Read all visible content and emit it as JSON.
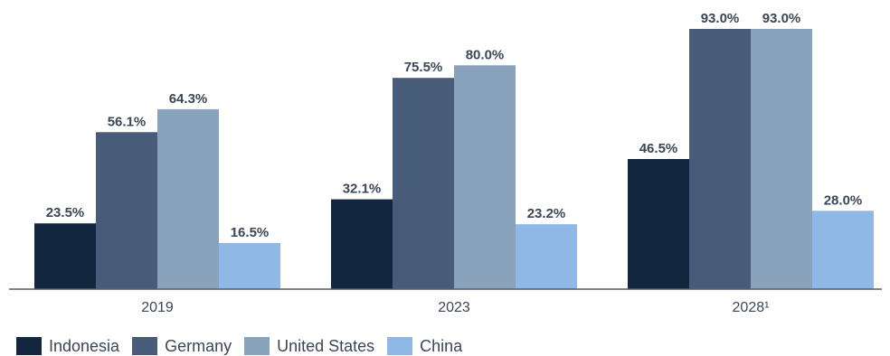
{
  "chart_data": {
    "type": "bar",
    "categories": [
      "2019",
      "2023",
      "2028¹"
    ],
    "series": [
      {
        "name": "Indonesia",
        "color": "#13263f",
        "values": [
          23.5,
          32.1,
          46.5
        ]
      },
      {
        "name": "Germany",
        "color": "#475c78",
        "values": [
          56.1,
          75.5,
          93.0
        ]
      },
      {
        "name": "United States",
        "color": "#8aa3bd",
        "values": [
          64.3,
          80.0,
          93.0
        ]
      },
      {
        "name": "China",
        "color": "#8fb8e6",
        "values": [
          16.5,
          23.2,
          28.0
        ]
      }
    ],
    "value_labels": [
      [
        "23.5%",
        "56.1%",
        "64.3%",
        "16.5%"
      ],
      [
        "32.1%",
        "75.5%",
        "80.0%",
        "23.2%"
      ],
      [
        "46.5%",
        "93.0%",
        "93.0%",
        "28.0%"
      ]
    ],
    "title": "",
    "xlabel": "",
    "ylabel": "",
    "ylim": [
      0,
      93
    ],
    "grid": false,
    "legend_position": "bottom-left"
  }
}
